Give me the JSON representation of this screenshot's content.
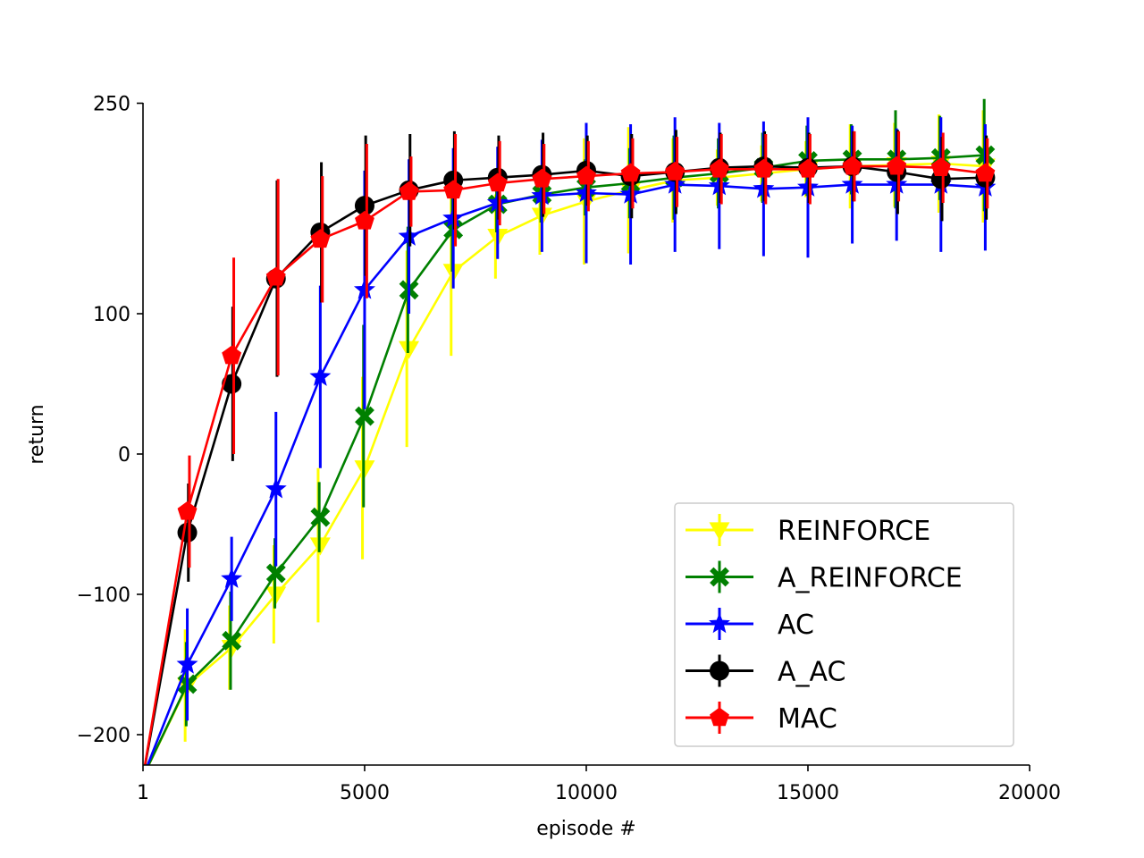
{
  "chart_data": {
    "type": "line",
    "title": "",
    "xlabel": "episode #",
    "ylabel": "return",
    "xlim": [
      1,
      20000
    ],
    "ylim": [
      -220,
      250
    ],
    "xticks": [
      1,
      5000,
      10000,
      15000,
      20000
    ],
    "xtick_labels": [
      "1",
      "5000",
      "10000",
      "15000",
      "20000"
    ],
    "yticks": [
      -200,
      -100,
      0,
      100,
      250
    ],
    "ytick_labels": [
      "−200",
      "−100",
      "0",
      "100",
      "250"
    ],
    "grid": false,
    "legend_position": "lower-right",
    "x": [
      1,
      1000,
      2000,
      3000,
      4000,
      5000,
      6000,
      7000,
      8000,
      9000,
      10000,
      11000,
      12000,
      13000,
      14000,
      15000,
      16000,
      17000,
      18000,
      19000
    ],
    "series": [
      {
        "name": "REINFORCE",
        "color": "#ffff00",
        "marker": "triangle-down",
        "values": [
          -230,
          -165,
          -138,
          -100,
          -65,
          -10,
          75,
          130,
          155,
          170,
          180,
          188,
          195,
          197,
          200,
          203,
          205,
          206,
          207,
          205
        ],
        "errors": [
          0,
          40,
          30,
          35,
          55,
          65,
          70,
          60,
          30,
          28,
          45,
          45,
          30,
          20,
          20,
          20,
          30,
          30,
          35,
          40
        ]
      },
      {
        "name": "A_REINFORCE",
        "color": "#008000",
        "marker": "x-filled",
        "values": [
          -230,
          -164,
          -133,
          -85,
          -45,
          27,
          117,
          160,
          178,
          185,
          190,
          193,
          197,
          200,
          204,
          209,
          210,
          210,
          211,
          213
        ],
        "errors": [
          0,
          30,
          35,
          25,
          25,
          65,
          45,
          30,
          20,
          20,
          20,
          25,
          30,
          25,
          25,
          25,
          25,
          35,
          30,
          40
        ]
      },
      {
        "name": "AC",
        "color": "#0000ff",
        "marker": "star",
        "values": [
          -230,
          -150,
          -89,
          -25,
          55,
          117,
          155,
          168,
          179,
          184,
          186,
          185,
          192,
          191,
          189,
          190,
          192,
          192,
          192,
          190
        ],
        "errors": [
          0,
          40,
          30,
          55,
          65,
          85,
          55,
          50,
          40,
          40,
          50,
          50,
          48,
          45,
          48,
          50,
          42,
          40,
          48,
          45
        ]
      },
      {
        "name": "A_AC",
        "color": "#000000",
        "marker": "circle",
        "values": [
          -230,
          -56,
          50,
          125,
          158,
          177,
          188,
          195,
          197,
          199,
          202,
          198,
          201,
          204,
          205,
          204,
          205,
          201,
          196,
          197
        ],
        "errors": [
          0,
          35,
          55,
          70,
          50,
          50,
          40,
          35,
          30,
          30,
          25,
          30,
          30,
          25,
          25,
          25,
          25,
          30,
          30,
          30
        ]
      },
      {
        "name": "MAC",
        "color": "#ff0000",
        "marker": "pentagon",
        "values": [
          -230,
          -41,
          70,
          126,
          153,
          166,
          187,
          188,
          193,
          196,
          198,
          200,
          201,
          203,
          203,
          203,
          205,
          205,
          204,
          200
        ],
        "errors": [
          0,
          40,
          70,
          70,
          45,
          55,
          25,
          40,
          30,
          25,
          25,
          25,
          25,
          25,
          25,
          25,
          25,
          25,
          25,
          25
        ]
      }
    ]
  }
}
